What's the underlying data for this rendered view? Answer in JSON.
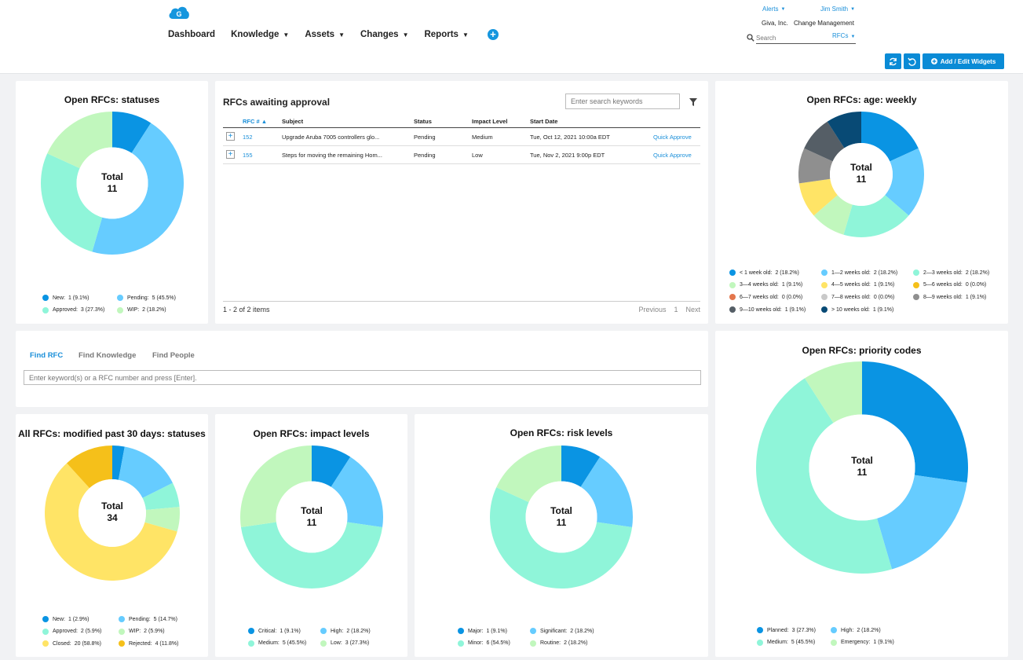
{
  "header": {
    "nav": [
      "Dashboard",
      "Knowledge",
      "Assets",
      "Changes",
      "Reports"
    ],
    "alerts_label": "Alerts",
    "user_label": "Jim Smith",
    "org_name": "Giva, Inc.",
    "module_name": "Change Management",
    "search_placeholder": "Search",
    "search_scope": "RFCs",
    "add_widgets_label": "Add / Edit Widgets",
    "logo_letter": "G",
    "colors": {
      "accent": "#0a8bd6"
    }
  },
  "widgets": [
    {
      "id": "w-statuses",
      "title": "Open RFCs: statuses",
      "center_label": "Total",
      "center_value": "11",
      "chart_data": {
        "type": "pie",
        "title": "Open RFCs: statuses",
        "total": 11,
        "slices": [
          {
            "label": "New:",
            "value": 1,
            "display": "1 (9.1%)",
            "color": "#0a94e3"
          },
          {
            "label": "Pending:",
            "value": 5,
            "display": "5 (45.5%)",
            "color": "#66ccff"
          },
          {
            "label": "Approved:",
            "value": 3,
            "display": "3 (27.3%)",
            "color": "#8ff5d9"
          },
          {
            "label": "WIP:",
            "value": 2,
            "display": "2 (18.2%)",
            "color": "#c1f7bd"
          }
        ]
      }
    },
    {
      "id": "w-age",
      "title": "Open RFCs: age: weekly",
      "center_label": "Total",
      "center_value": "11",
      "chart_data": {
        "type": "pie",
        "title": "Open RFCs: age: weekly",
        "total": 11,
        "slices": [
          {
            "label": "< 1 week old:",
            "value": 2,
            "display": "2 (18.2%)",
            "color": "#0a94e3"
          },
          {
            "label": "1—2 weeks old:",
            "value": 2,
            "display": "2 (18.2%)",
            "color": "#66ccff"
          },
          {
            "label": "2—3 weeks old:",
            "value": 2,
            "display": "2 (18.2%)",
            "color": "#8ff5d9"
          },
          {
            "label": "3—4 weeks old:",
            "value": 1,
            "display": "1 (9.1%)",
            "color": "#c1f7bd"
          },
          {
            "label": "4—5 weeks old:",
            "value": 1,
            "display": "1 (9.1%)",
            "color": "#ffe466"
          },
          {
            "label": "5—6 weeks old:",
            "value": 0,
            "display": "0 (0.0%)",
            "color": "#f5c01a"
          },
          {
            "label": "6—7 weeks old:",
            "value": 0,
            "display": "0 (0.0%)",
            "color": "#e3764c"
          },
          {
            "label": "7—8 weeks old:",
            "value": 0,
            "display": "0 (0.0%)",
            "color": "#c9c9c9"
          },
          {
            "label": "8—9 weeks old:",
            "value": 1,
            "display": "1 (9.1%)",
            "color": "#8f8f8f"
          },
          {
            "label": "9—10 weeks old:",
            "value": 1,
            "display": "1 (9.1%)",
            "color": "#555e66"
          },
          {
            "label": "> 10 weeks old:",
            "value": 1,
            "display": "1 (9.1%)",
            "color": "#084a75"
          }
        ]
      }
    },
    {
      "id": "w-modified",
      "title": "All RFCs: modified past 30 days: statuses",
      "center_label": "Total",
      "center_value": "34",
      "chart_data": {
        "type": "pie",
        "title": "All RFCs: modified past 30 days: statuses",
        "total": 34,
        "slices": [
          {
            "label": "New:",
            "value": 1,
            "display": "1 (2.9%)",
            "color": "#0a94e3"
          },
          {
            "label": "Pending:",
            "value": 5,
            "display": "5 (14.7%)",
            "color": "#66ccff"
          },
          {
            "label": "Approved:",
            "value": 2,
            "display": "2 (5.9%)",
            "color": "#8ff5d9"
          },
          {
            "label": "WIP:",
            "value": 2,
            "display": "2 (5.9%)",
            "color": "#c1f7bd"
          },
          {
            "label": "Closed:",
            "value": 20,
            "display": "20 (58.8%)",
            "color": "#ffe466"
          },
          {
            "label": "Rejected:",
            "value": 4,
            "display": "4 (11.8%)",
            "color": "#f5c01a"
          }
        ]
      }
    },
    {
      "id": "w-impact",
      "title": "Open RFCs: impact levels",
      "center_label": "Total",
      "center_value": "11",
      "chart_data": {
        "type": "pie",
        "title": "Open RFCs: impact levels",
        "total": 11,
        "slices": [
          {
            "label": "Critical:",
            "value": 1,
            "display": "1 (9.1%)",
            "color": "#0a94e3"
          },
          {
            "label": "High:",
            "value": 2,
            "display": "2 (18.2%)",
            "color": "#66ccff"
          },
          {
            "label": "Medium:",
            "value": 5,
            "display": "5 (45.5%)",
            "color": "#8ff5d9"
          },
          {
            "label": "Low:",
            "value": 3,
            "display": "3 (27.3%)",
            "color": "#c1f7bd"
          }
        ]
      }
    },
    {
      "id": "w-risk",
      "title": "Open RFCs: risk levels",
      "center_label": "Total",
      "center_value": "11",
      "chart_data": {
        "type": "pie",
        "title": "Open RFCs: risk levels",
        "total": 11,
        "slices": [
          {
            "label": "Major:",
            "value": 1,
            "display": "1 (9.1%)",
            "color": "#0a94e3"
          },
          {
            "label": "Significant:",
            "value": 2,
            "display": "2 (18.2%)",
            "color": "#66ccff"
          },
          {
            "label": "Minor:",
            "value": 6,
            "display": "6 (54.5%)",
            "color": "#8ff5d9"
          },
          {
            "label": "Routine:",
            "value": 2,
            "display": "2 (18.2%)",
            "color": "#c1f7bd"
          }
        ]
      }
    },
    {
      "id": "w-priority",
      "title": "Open RFCs: priority codes",
      "center_label": "Total",
      "center_value": "11",
      "chart_data": {
        "type": "pie",
        "title": "Open RFCs: priority codes",
        "total": 11,
        "slices": [
          {
            "label": "Planned:",
            "value": 3,
            "display": "3 (27.3%)",
            "color": "#0a94e3"
          },
          {
            "label": "High:",
            "value": 2,
            "display": "2 (18.2%)",
            "color": "#66ccff"
          },
          {
            "label": "Medium:",
            "value": 5,
            "display": "5 (45.5%)",
            "color": "#8ff5d9"
          },
          {
            "label": "Emergency:",
            "value": 1,
            "display": "1 (9.1%)",
            "color": "#c1f7bd"
          }
        ]
      }
    }
  ],
  "approvals": {
    "title": "RFCs awaiting approval",
    "search_placeholder": "Enter search keywords",
    "columns": [
      "RFC #",
      "Subject",
      "Status",
      "Impact Level",
      "Start Date"
    ],
    "rows": [
      {
        "rfc": "152",
        "subject": "Upgrade Aruba 7005 controllers glo...",
        "status": "Pending",
        "impact": "Medium",
        "start": "Tue, Oct 12, 2021 10:00a EDT",
        "action": "Quick Approve"
      },
      {
        "rfc": "155",
        "subject": "Steps for moving the remaining Hom...",
        "status": "Pending",
        "impact": "Low",
        "start": "Tue, Nov 2, 2021 9:00p EDT",
        "action": "Quick Approve"
      }
    ],
    "footer_count": "1 - 2 of 2 items",
    "pager": {
      "prev": "Previous",
      "page": "1",
      "next": "Next"
    }
  },
  "find": {
    "tabs": [
      "Find RFC",
      "Find Knowledge",
      "Find People"
    ],
    "active_tab": "Find RFC",
    "input_placeholder": "Enter keyword(s) or a RFC number and press [Enter]."
  }
}
